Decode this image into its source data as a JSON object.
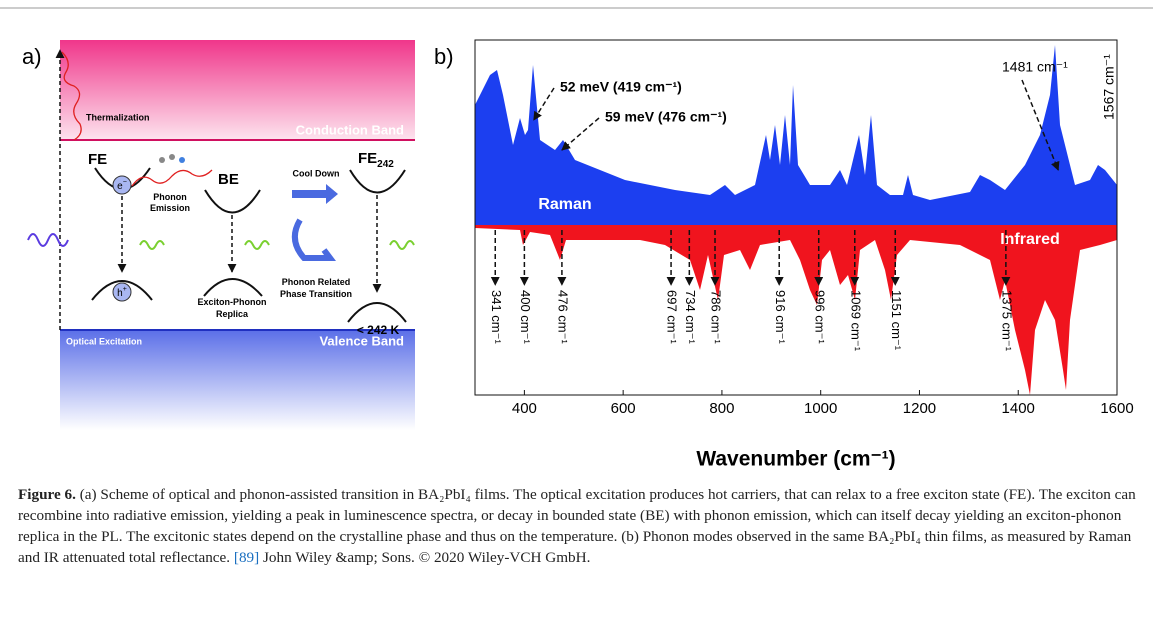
{
  "panel_a": {
    "label": "a)",
    "conduction_band": "Conduction Band",
    "valence_band": "Valence Band",
    "thermalization": "Thermalization",
    "fe": "FE",
    "be": "BE",
    "phonon_emission": [
      "Phonon",
      "Emission"
    ],
    "cool_down": "Cool Down",
    "fe242": "FE",
    "fe242_sub": "242",
    "replica": [
      "Exciton-Phonon",
      "Replica"
    ],
    "phase_transition": [
      "Phonon Related",
      "Phase Transition"
    ],
    "below_temp": "< 242 K",
    "optical_excitation": "Optical Excitation",
    "electron": "e",
    "electron_sup": "−",
    "hole": "h",
    "hole_sup": "+"
  },
  "chart_data": {
    "type": "spectrum",
    "panel_label": "b)",
    "x_label": "Wavenumber (cm⁻¹)",
    "xlim": [
      300,
      1600
    ],
    "xticks": [
      400,
      600,
      800,
      1000,
      1200,
      1400,
      1600
    ],
    "series": [
      {
        "name": "Raman",
        "color": "#1c3ff0"
      },
      {
        "name": "Infrared",
        "color": "#f0141e"
      }
    ],
    "raman_annotations": [
      {
        "x": 419,
        "label": "52 meV (419 cm⁻¹)"
      },
      {
        "x": 476,
        "label": "59 meV (476 cm⁻¹)"
      },
      {
        "x": 1481,
        "label": "1481 cm⁻¹"
      },
      {
        "x": 1567,
        "label": "1567 cm⁻¹"
      }
    ],
    "ir_annotations": [
      {
        "x": 341,
        "label": "341 cm⁻¹"
      },
      {
        "x": 400,
        "label": "400 cm⁻¹"
      },
      {
        "x": 476,
        "label": "476 cm⁻¹"
      },
      {
        "x": 697,
        "label": "697 cm⁻¹"
      },
      {
        "x": 734,
        "label": "734 cm⁻¹"
      },
      {
        "x": 786,
        "label": "786 cm⁻¹"
      },
      {
        "x": 916,
        "label": "916 cm⁻¹"
      },
      {
        "x": 996,
        "label": "996 cm⁻¹"
      },
      {
        "x": 1069,
        "label": "1069 cm⁻¹"
      },
      {
        "x": 1151,
        "label": "1151 cm⁻¹"
      },
      {
        "x": 1375,
        "label": "1375 cm⁻¹"
      }
    ]
  },
  "caption": {
    "label": "Figure 6.",
    "text": " (a) Scheme of optical and phonon-assisted transition in BA₂PbI₄ films. The optical excitation produces hot carriers, that can relax to a free exciton state (FE). The exciton can recombine into radiative emission, yielding a peak in luminescence spectra, or decay in bounded state (BE) with phonon emission, which can itself decay yielding an exciton-phonon replica in the PL. The excitonic states depend on the crystalline phase and thus on the temperature. (b) Phonon modes observed in the same BA₂PbI₄ thin films, as measured by Raman and IR attenuated total reflectance. ",
    "ref": "[89]",
    "credit": " John Wiley &amp; Sons. © 2020 Wiley-VCH GmbH."
  }
}
